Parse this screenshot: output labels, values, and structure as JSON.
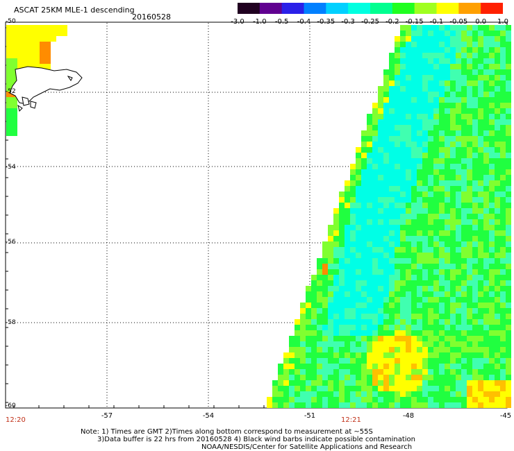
{
  "title": "ASCAT 25KM MLE-1 descending",
  "date": "20160528",
  "colorbar": {
    "colors": [
      "#200020",
      "#600090",
      "#2a20e8",
      "#0080ff",
      "#00d0ff",
      "#00ffe0",
      "#00ff90",
      "#20ff20",
      "#a0ff20",
      "#ffff00",
      "#ffa000",
      "#ff2000"
    ],
    "labels": [
      "-3.0",
      "-1.0",
      "-0.5",
      "-0.4",
      "-0.35",
      "-0.3",
      "-0.25",
      "-0.2",
      "-0.15",
      "-0.1",
      "-0.05",
      "0.0",
      "1.0"
    ]
  },
  "latitude_labels": [
    "-50",
    "-52",
    "-54",
    "-56",
    "-58",
    "-60"
  ],
  "longitude_labels": [
    "-57",
    "-54",
    "-51",
    "-48",
    "-45"
  ],
  "time_labels": {
    "left": "12:20",
    "middle": "12:21"
  },
  "notes": {
    "line1": "Note: 1) Times are GMT 2)Times along bottom correspond to measurement at ~55S",
    "line2": "3)Data buffer is 22 hrs from 20160528 4) Black wind barbs indicate possible contamination",
    "line3": "NOAA/NESDIS/Center for Satellite Applications and Research"
  },
  "map_palette": {
    "cyan": "#00ffe6",
    "aqua": "#40ffb0",
    "green": "#20ff40",
    "lime": "#80ff30",
    "yellow": "#ffff00",
    "gold": "#ffc000",
    "orange": "#ff8c00"
  }
}
